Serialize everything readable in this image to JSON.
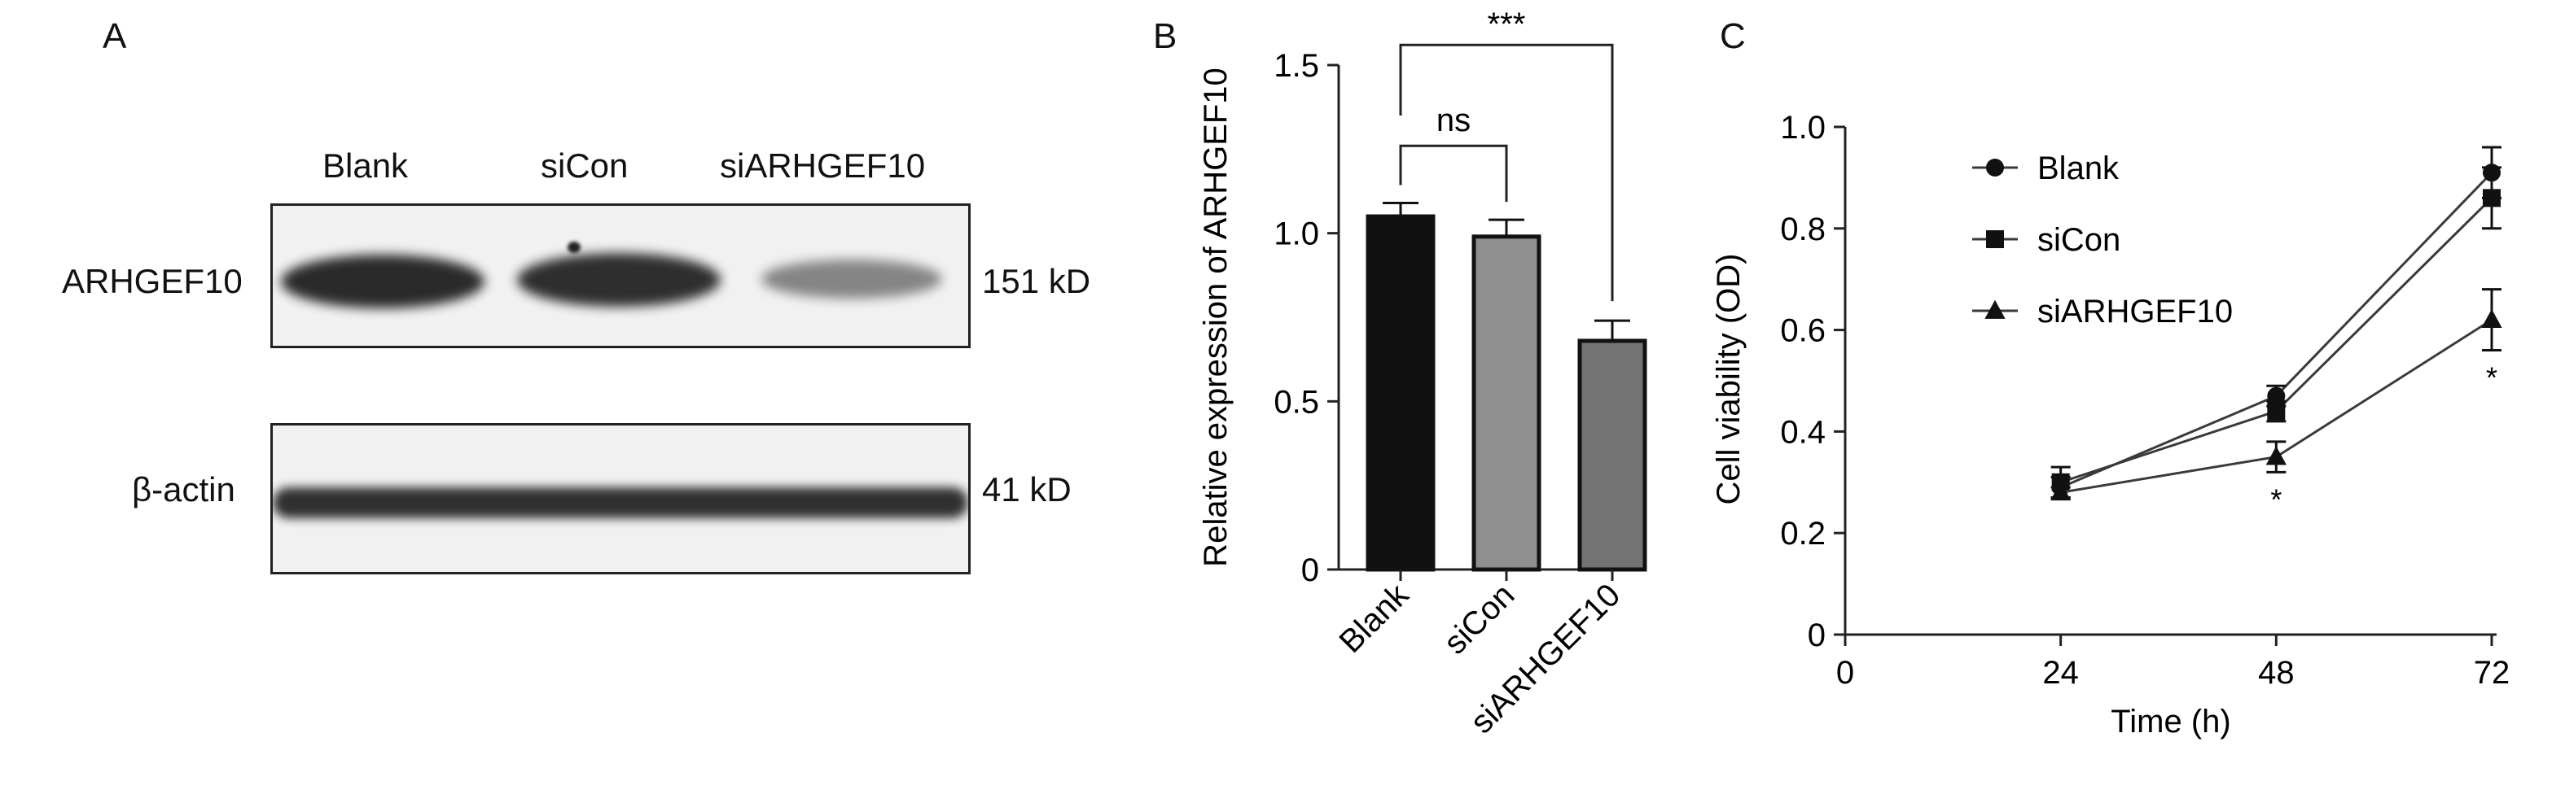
{
  "panel_a": {
    "letter": "A",
    "lanes": [
      "Blank",
      "siCon",
      "siARHGEF10"
    ],
    "blots": [
      {
        "protein": "ARHGEF10",
        "size": "151 kD",
        "band_intensity": [
          0.95,
          0.9,
          0.55
        ]
      },
      {
        "protein": "β-actin",
        "size": "41 kD",
        "band_intensity": [
          0.95,
          0.95,
          0.95
        ]
      }
    ]
  },
  "panel_b": {
    "letter": "B",
    "significance": [
      {
        "from": "Blank",
        "to": "siCon",
        "label": "ns"
      },
      {
        "from": "Blank",
        "to": "siARHGEF10",
        "label": "***"
      }
    ]
  },
  "panel_c": {
    "letter": "C",
    "significance_marks": [
      {
        "series": "siARHGEF10",
        "x": 48,
        "label": "*"
      },
      {
        "series": "siARHGEF10",
        "x": 72,
        "label": "*"
      }
    ]
  },
  "colors": {
    "bar_blank": "#111111",
    "bar_sicon": "#8f8f8f",
    "bar_siarhgef10": "#747474",
    "line": "#3a3a3a"
  },
  "chart_data": [
    {
      "type": "bar",
      "title": "",
      "xlabel": "",
      "ylabel": "Relative expression of ARHGEF10",
      "categories": [
        "Blank",
        "siCon",
        "siARHGEF10"
      ],
      "values": [
        1.05,
        0.99,
        0.68
      ],
      "errors": [
        0.04,
        0.05,
        0.06
      ],
      "ylim": [
        0,
        1.5
      ],
      "yticks": [
        0,
        0.5,
        1.0,
        1.5
      ],
      "ytick_labels": [
        "0",
        "0.5",
        "1.0",
        "1.5"
      ],
      "grid": false,
      "legend": "none"
    },
    {
      "type": "line",
      "title": "",
      "xlabel": "Time (h)",
      "ylabel": "Cell viability (OD)",
      "x": [
        24,
        48,
        72
      ],
      "xlim": [
        0,
        72
      ],
      "xticks": [
        0,
        24,
        48,
        72
      ],
      "ylim": [
        0,
        1.0
      ],
      "yticks": [
        0,
        0.2,
        0.4,
        0.6,
        0.8,
        1.0
      ],
      "ytick_labels": [
        "0",
        "0.2",
        "0.4",
        "0.6",
        "0.8",
        "1.0"
      ],
      "series": [
        {
          "name": "Blank",
          "marker": "circle",
          "values": [
            0.29,
            0.47,
            0.91
          ],
          "errors": [
            0.02,
            0.02,
            0.05
          ]
        },
        {
          "name": "siCon",
          "marker": "square",
          "values": [
            0.3,
            0.44,
            0.86
          ],
          "errors": [
            0.03,
            0.02,
            0.06
          ]
        },
        {
          "name": "siARHGEF10",
          "marker": "triangle",
          "values": [
            0.28,
            0.35,
            0.62
          ],
          "errors": [
            0.01,
            0.03,
            0.06
          ]
        }
      ],
      "grid": false,
      "legend": "top-left"
    }
  ]
}
